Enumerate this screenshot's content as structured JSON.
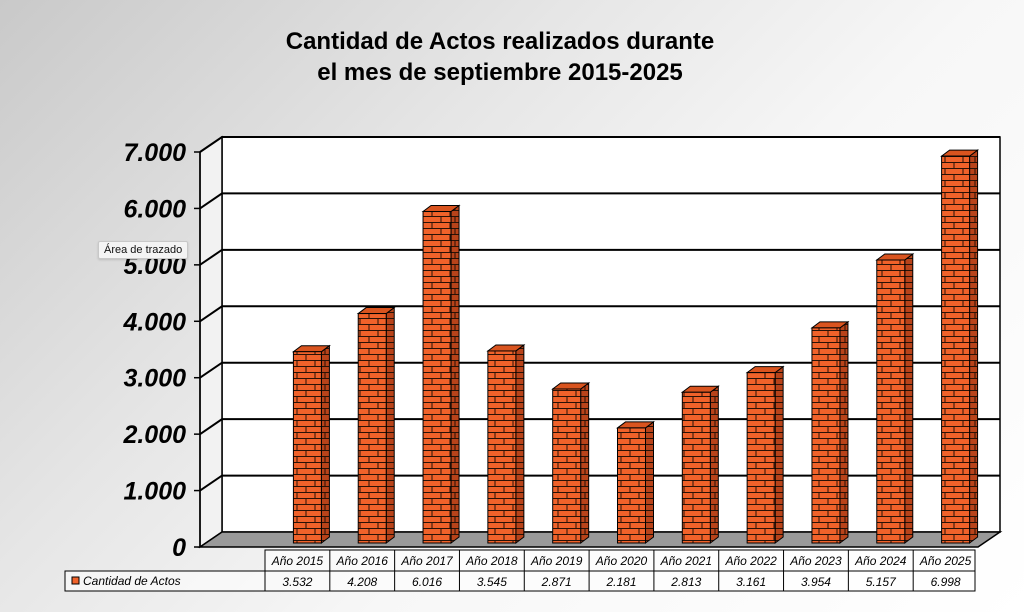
{
  "title_lines": [
    "Cantidad de Actos realizados durante",
    "el mes de septiembre 2015-2025"
  ],
  "tooltip": "Área de trazado",
  "chart_data": {
    "type": "bar",
    "title": "Cantidad de Actos realizados durante el mes de septiembre 2015-2025",
    "categories": [
      "Año 2015",
      "Año 2016",
      "Año 2017",
      "Año 2018",
      "Año 2019",
      "Año 2020",
      "Año 2021",
      "Año 2022",
      "Año 2023",
      "Año 2024",
      "Año 2025"
    ],
    "series": [
      {
        "name": "Cantidad de Actos",
        "values": [
          3532,
          4208,
          6016,
          3545,
          2871,
          2181,
          2813,
          3161,
          3954,
          5157,
          6998
        ],
        "value_labels": [
          "3.532",
          "4.208",
          "6.016",
          "3.545",
          "2.871",
          "2.181",
          "2.813",
          "3.161",
          "3.954",
          "5.157",
          "6.998"
        ]
      }
    ],
    "ylim": [
      0,
      7000
    ],
    "yticks": [
      0,
      1000,
      2000,
      3000,
      4000,
      5000,
      6000,
      7000
    ],
    "ytick_labels": [
      "0",
      "1.000",
      "2.000",
      "3.000",
      "4.000",
      "5.000",
      "6.000",
      "7.000"
    ],
    "grid": true,
    "three_d": true,
    "data_table": true,
    "colors": {
      "bar": "#f0622a",
      "bar_side": "#b8431a",
      "mortar": "#2a1206",
      "floor": "#9a9a9a",
      "wall": "#ffffff"
    }
  }
}
